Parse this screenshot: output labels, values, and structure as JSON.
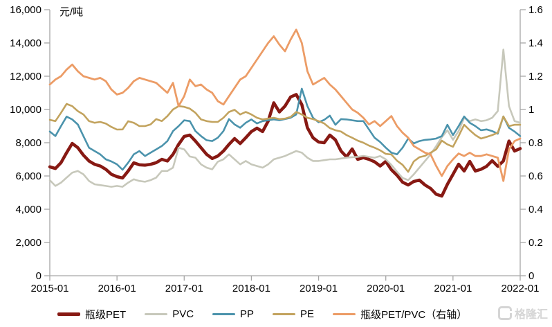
{
  "watermark": {
    "text": "格隆汇"
  },
  "chart_data": {
    "type": "line",
    "unit_label": "元/吨",
    "months": 85,
    "x_start": "2015-01",
    "x_end": "2022-01",
    "grid": false,
    "legend_position": "bottom",
    "axis_color": "#a6a6a6",
    "text_color": "#000000",
    "x_ticks": [
      {
        "label": "2015-01",
        "month": 0
      },
      {
        "label": "2016-01",
        "month": 12
      },
      {
        "label": "2017-01",
        "month": 24
      },
      {
        "label": "2018-01",
        "month": 36
      },
      {
        "label": "2019-01",
        "month": 48
      },
      {
        "label": "2020-01",
        "month": 60
      },
      {
        "label": "2021-01",
        "month": 72
      },
      {
        "label": "2022-01",
        "month": 84
      }
    ],
    "left_axis": {
      "min": 0,
      "max": 16000,
      "step": 2000,
      "tick_labels": [
        "0",
        "2,000",
        "4,000",
        "6,000",
        "8,000",
        "10,000",
        "12,000",
        "14,000",
        "16,000"
      ]
    },
    "right_axis": {
      "min": 0,
      "max": 1.6,
      "step": 0.2,
      "tick_labels": [
        "0",
        "0.2",
        "0.4",
        "0.6",
        "0.8",
        "1",
        "1.2",
        "1.4",
        "1.6"
      ]
    },
    "series": [
      {
        "name": "瓶级PET",
        "color": "#871913",
        "axis": "left",
        "width": 4.5,
        "values": [
          6550,
          6450,
          6800,
          7400,
          7960,
          7700,
          7250,
          6900,
          6700,
          6600,
          6400,
          6100,
          5960,
          5880,
          6300,
          6790,
          6670,
          6650,
          6700,
          6800,
          7000,
          6900,
          7300,
          7900,
          8380,
          8460,
          8100,
          7700,
          7300,
          7050,
          7200,
          7500,
          7900,
          8250,
          7950,
          8300,
          8670,
          8880,
          8670,
          9300,
          10400,
          9850,
          10200,
          10750,
          10900,
          10300,
          8900,
          8300,
          8040,
          8000,
          8460,
          8170,
          7500,
          7150,
          7625,
          7000,
          7100,
          7000,
          6850,
          6600,
          6875,
          6375,
          6040,
          5625,
          5460,
          5670,
          5750,
          5460,
          5250,
          4900,
          4790,
          5500,
          6100,
          6710,
          6300,
          6875,
          6300,
          6400,
          6580,
          6920,
          6580,
          6900,
          8100,
          7500,
          7650
        ]
      },
      {
        "name": "PVC",
        "color": "#c7c8bb",
        "axis": "left",
        "width": 2.6,
        "values": [
          5750,
          5400,
          5600,
          5900,
          6200,
          6300,
          6100,
          5700,
          5500,
          5450,
          5400,
          5350,
          5400,
          5350,
          5600,
          5800,
          5700,
          5650,
          5750,
          5900,
          6300,
          6300,
          6500,
          7700,
          7600,
          7170,
          7100,
          6700,
          6500,
          6400,
          6860,
          7000,
          7300,
          7000,
          6700,
          6900,
          6700,
          6600,
          6500,
          6700,
          7000,
          7100,
          7200,
          7350,
          7500,
          7400,
          7100,
          6900,
          6900,
          6950,
          7000,
          7000,
          7050,
          7100,
          7130,
          7150,
          7210,
          7150,
          7100,
          7200,
          7000,
          6670,
          6250,
          5880,
          5750,
          6100,
          6500,
          6900,
          7300,
          7800,
          8330,
          8750,
          8180,
          8700,
          9500,
          9300,
          9400,
          9300,
          9350,
          9500,
          9900,
          13600,
          10200,
          9300,
          9200
        ]
      },
      {
        "name": "PP",
        "color": "#4b93ac",
        "axis": "left",
        "width": 2.6,
        "values": [
          8670,
          8400,
          9000,
          9570,
          9400,
          9100,
          8400,
          7700,
          7500,
          7300,
          7000,
          6875,
          6700,
          6375,
          6800,
          7300,
          7500,
          7200,
          7400,
          7600,
          7800,
          8100,
          8700,
          9000,
          9350,
          9300,
          8700,
          8400,
          8150,
          8100,
          8300,
          8700,
          9420,
          9100,
          8900,
          9200,
          9400,
          9160,
          9300,
          9350,
          9400,
          9350,
          9420,
          9500,
          9700,
          11250,
          10200,
          9500,
          9230,
          9375,
          9630,
          9080,
          9420,
          9400,
          9350,
          9300,
          9300,
          8800,
          8300,
          8040,
          7700,
          7400,
          7300,
          7700,
          8250,
          7960,
          8100,
          8170,
          8200,
          8250,
          8400,
          9080,
          8460,
          9000,
          9580,
          9200,
          9000,
          8750,
          8800,
          8700,
          8540,
          9580,
          8900,
          8670,
          8400
        ]
      },
      {
        "name": "PE",
        "color": "#c2a35e",
        "axis": "left",
        "width": 2.6,
        "values": [
          9375,
          9300,
          9800,
          10333,
          10200,
          9900,
          9700,
          9300,
          9200,
          9250,
          9150,
          8950,
          8790,
          8800,
          9290,
          9200,
          9000,
          9000,
          9100,
          9420,
          9300,
          9600,
          10000,
          10200,
          10160,
          10050,
          9800,
          9400,
          9300,
          9250,
          9250,
          9500,
          9850,
          9980,
          9700,
          9850,
          9700,
          9500,
          9400,
          9450,
          9500,
          9420,
          9450,
          9550,
          9850,
          9700,
          9500,
          9420,
          9300,
          9160,
          8880,
          8750,
          8670,
          8460,
          8300,
          8125,
          8000,
          7830,
          7700,
          7540,
          7330,
          7290,
          6920,
          6670,
          6250,
          6875,
          7130,
          7210,
          7400,
          7600,
          8125,
          7900,
          7760,
          8400,
          9080,
          8750,
          8460,
          8250,
          8350,
          8460,
          8600,
          9580,
          9000,
          9080,
          9080
        ]
      },
      {
        "name": "瓶级PET/PVC（右轴）",
        "color": "#ec9c66",
        "axis": "right",
        "width": 2.8,
        "values": [
          1.15,
          1.18,
          1.2,
          1.24,
          1.27,
          1.23,
          1.2,
          1.19,
          1.18,
          1.19,
          1.17,
          1.12,
          1.09,
          1.1,
          1.13,
          1.17,
          1.19,
          1.18,
          1.17,
          1.16,
          1.13,
          1.1,
          1.16,
          1.02,
          1.08,
          1.18,
          1.14,
          1.15,
          1.12,
          1.1,
          1.05,
          1.03,
          1.08,
          1.13,
          1.18,
          1.2,
          1.25,
          1.3,
          1.35,
          1.4,
          1.44,
          1.39,
          1.35,
          1.42,
          1.48,
          1.4,
          1.23,
          1.15,
          1.17,
          1.19,
          1.15,
          1.12,
          1.08,
          1.04,
          1.0,
          0.98,
          0.95,
          0.91,
          0.93,
          0.9,
          0.93,
          0.96,
          0.9,
          0.86,
          0.83,
          0.78,
          0.76,
          0.74,
          0.73,
          0.66,
          0.6,
          0.66,
          0.7,
          0.735,
          0.72,
          0.74,
          0.72,
          0.72,
          0.73,
          0.72,
          0.71,
          0.57,
          0.76,
          0.81,
          0.825
        ]
      }
    ]
  }
}
